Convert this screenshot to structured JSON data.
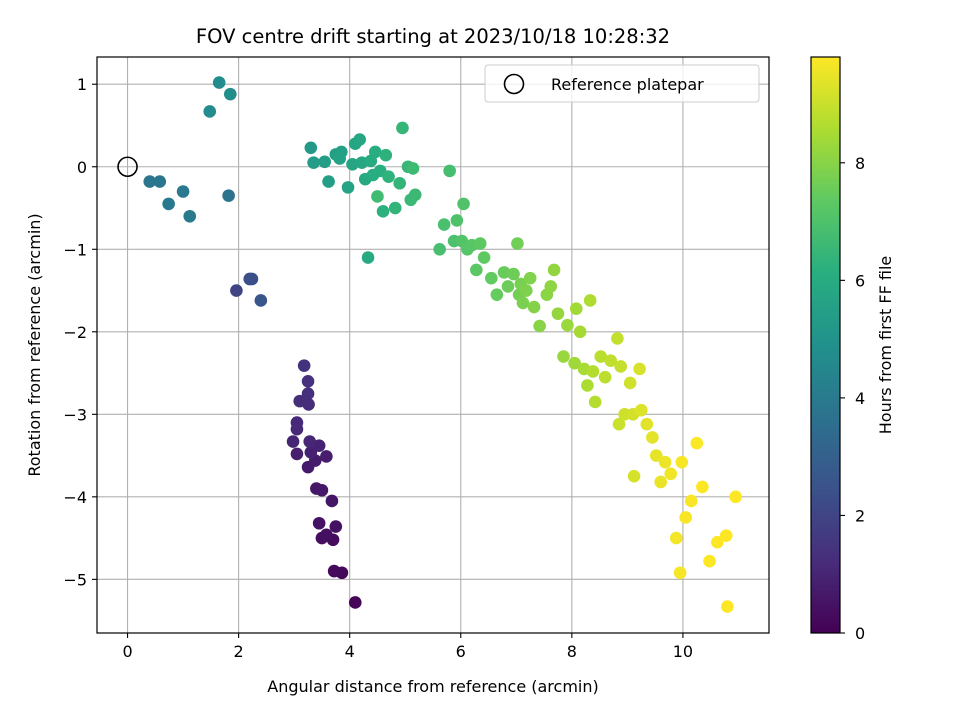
{
  "chart_data": {
    "type": "scatter",
    "title": "FOV centre drift starting at 2023/10/18 10:28:32",
    "xlabel": "Angular distance from reference (arcmin)",
    "ylabel": "Rotation from reference (arcmin)",
    "xlim": [
      -0.55,
      11.55
    ],
    "ylim": [
      -5.65,
      1.33
    ],
    "xticks": [
      0,
      2,
      4,
      6,
      8,
      10
    ],
    "xtick_labels": [
      "0",
      "2",
      "4",
      "6",
      "8",
      "10"
    ],
    "yticks": [
      1,
      0,
      -1,
      -2,
      -3,
      -4,
      -5
    ],
    "ytick_labels": [
      "1",
      "0",
      "−1",
      "−2",
      "−3",
      "−4",
      "−5"
    ],
    "grid": true,
    "legend": {
      "label": "Reference platepar",
      "placement": "top-right"
    },
    "reference_point": {
      "x": 0,
      "y": 0
    },
    "colorbar": {
      "label": "Hours from first FF file",
      "colormap": "viridis",
      "range": [
        0,
        9.8
      ],
      "ticks": [
        0,
        2,
        4,
        6,
        8
      ],
      "tick_labels": [
        "0",
        "2",
        "4",
        "6",
        "8"
      ]
    },
    "points": [
      {
        "x": 4.1,
        "y": -5.28,
        "c": 0.1
      },
      {
        "x": 3.86,
        "y": -4.92,
        "c": 0.2
      },
      {
        "x": 3.72,
        "y": -4.9,
        "c": 0.25
      },
      {
        "x": 3.7,
        "y": -4.52,
        "c": 0.3
      },
      {
        "x": 3.5,
        "y": -4.5,
        "c": 0.35
      },
      {
        "x": 3.58,
        "y": -4.46,
        "c": 0.4
      },
      {
        "x": 3.75,
        "y": -4.36,
        "c": 0.45
      },
      {
        "x": 3.45,
        "y": -4.32,
        "c": 0.5
      },
      {
        "x": 3.68,
        "y": -4.05,
        "c": 0.55
      },
      {
        "x": 3.4,
        "y": -3.9,
        "c": 0.6
      },
      {
        "x": 3.5,
        "y": -3.92,
        "c": 0.65
      },
      {
        "x": 3.25,
        "y": -3.64,
        "c": 0.7
      },
      {
        "x": 3.38,
        "y": -3.56,
        "c": 0.75
      },
      {
        "x": 3.58,
        "y": -3.51,
        "c": 0.8
      },
      {
        "x": 3.05,
        "y": -3.48,
        "c": 0.85
      },
      {
        "x": 3.3,
        "y": -3.46,
        "c": 0.9
      },
      {
        "x": 3.45,
        "y": -3.38,
        "c": 0.95
      },
      {
        "x": 2.98,
        "y": -3.33,
        "c": 1.0
      },
      {
        "x": 3.28,
        "y": -3.33,
        "c": 1.05
      },
      {
        "x": 3.05,
        "y": -3.18,
        "c": 1.1
      },
      {
        "x": 3.05,
        "y": -3.1,
        "c": 1.15
      },
      {
        "x": 3.26,
        "y": -2.88,
        "c": 1.2
      },
      {
        "x": 3.1,
        "y": -2.84,
        "c": 1.25
      },
      {
        "x": 3.25,
        "y": -2.75,
        "c": 1.3
      },
      {
        "x": 3.25,
        "y": -2.6,
        "c": 1.35
      },
      {
        "x": 3.18,
        "y": -2.41,
        "c": 1.4
      },
      {
        "x": 1.96,
        "y": -1.5,
        "c": 2.0
      },
      {
        "x": 2.2,
        "y": -1.36,
        "c": 2.3
      },
      {
        "x": 2.24,
        "y": -1.36,
        "c": 2.4
      },
      {
        "x": 2.4,
        "y": -1.62,
        "c": 2.6
      },
      {
        "x": 1.82,
        "y": -0.35,
        "c": 3.7
      },
      {
        "x": 0.4,
        "y": -0.18,
        "c": 3.8
      },
      {
        "x": 0.58,
        "y": -0.18,
        "c": 3.85
      },
      {
        "x": 0.74,
        "y": -0.45,
        "c": 3.9
      },
      {
        "x": 1.0,
        "y": -0.3,
        "c": 3.95
      },
      {
        "x": 1.12,
        "y": -0.6,
        "c": 4.0
      },
      {
        "x": 1.48,
        "y": 0.67,
        "c": 4.7
      },
      {
        "x": 1.65,
        "y": 1.02,
        "c": 4.75
      },
      {
        "x": 1.85,
        "y": 0.88,
        "c": 4.8
      },
      {
        "x": 3.3,
        "y": 0.23,
        "c": 5.3
      },
      {
        "x": 3.35,
        "y": 0.05,
        "c": 5.35
      },
      {
        "x": 3.55,
        "y": 0.06,
        "c": 5.4
      },
      {
        "x": 3.62,
        "y": -0.18,
        "c": 5.45
      },
      {
        "x": 3.75,
        "y": 0.15,
        "c": 5.5
      },
      {
        "x": 3.85,
        "y": 0.18,
        "c": 5.55
      },
      {
        "x": 3.82,
        "y": 0.1,
        "c": 5.6
      },
      {
        "x": 3.97,
        "y": -0.25,
        "c": 5.65
      },
      {
        "x": 4.05,
        "y": 0.03,
        "c": 5.7
      },
      {
        "x": 4.1,
        "y": 0.28,
        "c": 5.75
      },
      {
        "x": 4.18,
        "y": 0.33,
        "c": 5.8
      },
      {
        "x": 4.22,
        "y": 0.05,
        "c": 5.85
      },
      {
        "x": 4.28,
        "y": -0.15,
        "c": 5.9
      },
      {
        "x": 4.33,
        "y": -1.1,
        "c": 5.95
      },
      {
        "x": 4.38,
        "y": 0.07,
        "c": 6.0
      },
      {
        "x": 4.42,
        "y": -0.1,
        "c": 6.05
      },
      {
        "x": 4.46,
        "y": 0.18,
        "c": 6.1
      },
      {
        "x": 4.55,
        "y": -0.05,
        "c": 6.15
      },
      {
        "x": 4.6,
        "y": -0.54,
        "c": 6.2
      },
      {
        "x": 4.65,
        "y": 0.14,
        "c": 6.25
      },
      {
        "x": 4.7,
        "y": -0.12,
        "c": 6.3
      },
      {
        "x": 4.82,
        "y": -0.5,
        "c": 6.35
      },
      {
        "x": 4.9,
        "y": -0.2,
        "c": 6.4
      },
      {
        "x": 4.95,
        "y": 0.47,
        "c": 6.45
      },
      {
        "x": 5.05,
        "y": 0.0,
        "c": 6.5
      },
      {
        "x": 5.1,
        "y": -0.4,
        "c": 6.55
      },
      {
        "x": 5.18,
        "y": -0.34,
        "c": 6.6
      },
      {
        "x": 5.14,
        "y": -0.02,
        "c": 6.65
      },
      {
        "x": 4.5,
        "y": -0.36,
        "c": 6.7
      },
      {
        "x": 5.8,
        "y": -0.05,
        "c": 6.8
      },
      {
        "x": 5.62,
        "y": -1.0,
        "c": 6.85
      },
      {
        "x": 5.7,
        "y": -0.7,
        "c": 6.9
      },
      {
        "x": 5.88,
        "y": -0.9,
        "c": 6.95
      },
      {
        "x": 5.93,
        "y": -0.65,
        "c": 7.0
      },
      {
        "x": 6.05,
        "y": -0.45,
        "c": 7.05
      },
      {
        "x": 6.02,
        "y": -0.9,
        "c": 7.1
      },
      {
        "x": 6.12,
        "y": -1.0,
        "c": 7.15
      },
      {
        "x": 6.2,
        "y": -0.95,
        "c": 7.2
      },
      {
        "x": 6.28,
        "y": -1.25,
        "c": 7.25
      },
      {
        "x": 6.35,
        "y": -0.93,
        "c": 7.3
      },
      {
        "x": 6.42,
        "y": -1.1,
        "c": 7.35
      },
      {
        "x": 6.55,
        "y": -1.35,
        "c": 7.4
      },
      {
        "x": 6.65,
        "y": -1.55,
        "c": 7.45
      },
      {
        "x": 6.78,
        "y": -1.28,
        "c": 7.5
      },
      {
        "x": 6.85,
        "y": -1.45,
        "c": 7.55
      },
      {
        "x": 6.95,
        "y": -1.3,
        "c": 7.6
      },
      {
        "x": 7.02,
        "y": -0.93,
        "c": 7.65
      },
      {
        "x": 7.05,
        "y": -1.55,
        "c": 7.7
      },
      {
        "x": 7.08,
        "y": -1.42,
        "c": 7.75
      },
      {
        "x": 7.12,
        "y": -1.65,
        "c": 7.8
      },
      {
        "x": 7.18,
        "y": -1.5,
        "c": 7.85
      },
      {
        "x": 7.25,
        "y": -1.35,
        "c": 7.9
      },
      {
        "x": 7.32,
        "y": -1.7,
        "c": 7.95
      },
      {
        "x": 7.42,
        "y": -1.93,
        "c": 8.0
      },
      {
        "x": 7.55,
        "y": -1.55,
        "c": 8.05
      },
      {
        "x": 7.62,
        "y": -1.45,
        "c": 8.1
      },
      {
        "x": 7.68,
        "y": -1.25,
        "c": 8.15
      },
      {
        "x": 7.75,
        "y": -1.78,
        "c": 8.2
      },
      {
        "x": 7.85,
        "y": -2.3,
        "c": 8.25
      },
      {
        "x": 7.92,
        "y": -1.92,
        "c": 8.3
      },
      {
        "x": 8.05,
        "y": -2.38,
        "c": 8.35
      },
      {
        "x": 8.08,
        "y": -1.72,
        "c": 8.4
      },
      {
        "x": 8.15,
        "y": -2.0,
        "c": 8.45
      },
      {
        "x": 8.22,
        "y": -2.45,
        "c": 8.5
      },
      {
        "x": 8.28,
        "y": -2.65,
        "c": 8.55
      },
      {
        "x": 8.33,
        "y": -1.62,
        "c": 8.6
      },
      {
        "x": 8.38,
        "y": -2.48,
        "c": 8.65
      },
      {
        "x": 8.42,
        "y": -2.85,
        "c": 8.7
      },
      {
        "x": 8.52,
        "y": -2.3,
        "c": 8.75
      },
      {
        "x": 8.6,
        "y": -2.55,
        "c": 8.8
      },
      {
        "x": 8.7,
        "y": -2.35,
        "c": 8.85
      },
      {
        "x": 8.82,
        "y": -2.08,
        "c": 8.9
      },
      {
        "x": 8.88,
        "y": -2.42,
        "c": 8.95
      },
      {
        "x": 8.85,
        "y": -3.12,
        "c": 9.0
      },
      {
        "x": 8.95,
        "y": -3.0,
        "c": 9.05
      },
      {
        "x": 9.05,
        "y": -2.62,
        "c": 9.1
      },
      {
        "x": 9.1,
        "y": -3.0,
        "c": 9.15
      },
      {
        "x": 9.12,
        "y": -3.75,
        "c": 9.2
      },
      {
        "x": 9.22,
        "y": -2.45,
        "c": 9.25
      },
      {
        "x": 9.25,
        "y": -2.95,
        "c": 9.3
      },
      {
        "x": 9.35,
        "y": -3.12,
        "c": 9.35
      },
      {
        "x": 9.45,
        "y": -3.28,
        "c": 9.4
      },
      {
        "x": 9.52,
        "y": -3.5,
        "c": 9.45
      },
      {
        "x": 9.6,
        "y": -3.82,
        "c": 9.5
      },
      {
        "x": 9.68,
        "y": -3.58,
        "c": 9.55
      },
      {
        "x": 9.78,
        "y": -3.72,
        "c": 9.6
      },
      {
        "x": 9.88,
        "y": -4.5,
        "c": 9.65
      },
      {
        "x": 9.95,
        "y": -4.92,
        "c": 9.68
      },
      {
        "x": 9.98,
        "y": -3.58,
        "c": 9.7
      },
      {
        "x": 10.05,
        "y": -4.25,
        "c": 9.72
      },
      {
        "x": 10.15,
        "y": -4.05,
        "c": 9.74
      },
      {
        "x": 10.25,
        "y": -3.35,
        "c": 9.76
      },
      {
        "x": 10.35,
        "y": -3.88,
        "c": 9.78
      },
      {
        "x": 10.48,
        "y": -4.78,
        "c": 9.79
      },
      {
        "x": 10.62,
        "y": -4.55,
        "c": 9.8
      },
      {
        "x": 10.8,
        "y": -5.33,
        "c": 9.8
      },
      {
        "x": 10.95,
        "y": -4.0,
        "c": 9.8
      },
      {
        "x": 10.78,
        "y": -4.47,
        "c": 9.8
      }
    ]
  }
}
